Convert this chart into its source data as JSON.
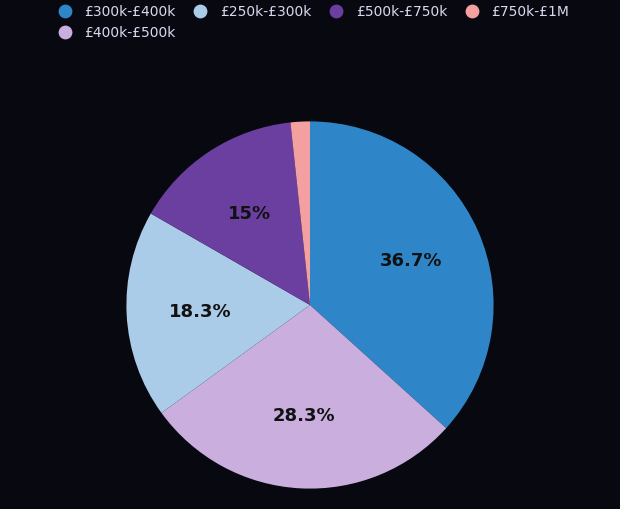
{
  "labels": [
    "£300k-£400k",
    "£400k-£500k",
    "£250k-£300k",
    "£500k-£750k",
    "£750k-£1M"
  ],
  "values": [
    36.7,
    28.3,
    18.3,
    15.0,
    1.7
  ],
  "colors": [
    "#2E86C8",
    "#C9AEDE",
    "#AACCE8",
    "#6B3FA0",
    "#F4A0A0"
  ],
  "pct_labels": [
    "36.7%",
    "28.3%",
    "18.3%",
    "15%",
    ""
  ],
  "background_color": "#080810",
  "text_color": "#111111",
  "legend_text_color": "#d8d8ee",
  "startangle": 90,
  "fontsize_pct": 13,
  "fontsize_legend": 10
}
